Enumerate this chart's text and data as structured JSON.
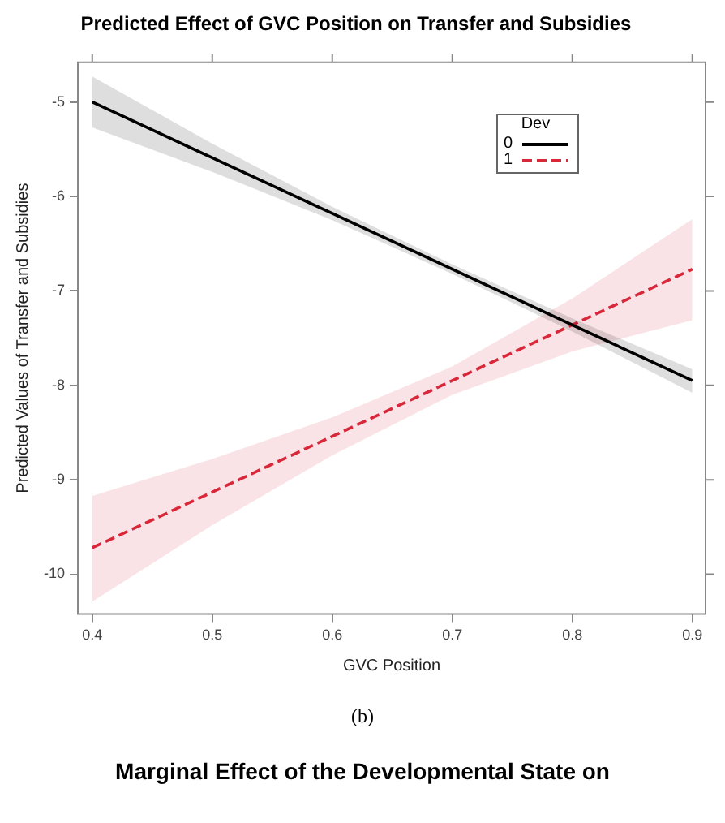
{
  "chart_data": {
    "type": "line",
    "title": "Predicted Effect of GVC Position on Transfer and Subsidies",
    "xlabel": "GVC Position",
    "ylabel": "Predicted Values of Transfer and Subsidies",
    "legend_title": "Dev",
    "legend": "top right",
    "grid": false,
    "x": [
      0.4,
      0.5,
      0.6,
      0.7,
      0.8,
      0.9
    ],
    "xlim": [
      0.388,
      0.911
    ],
    "xticks": [
      0.4,
      0.5,
      0.6,
      0.7,
      0.8,
      0.9
    ],
    "ylim": [
      -10.42,
      -4.58
    ],
    "yticks": [
      -10,
      -9,
      -8,
      -7,
      -6,
      -5
    ],
    "series": [
      {
        "name": "0",
        "color": "#000000",
        "line_style": "solid",
        "values": [
          -5.0,
          -5.59,
          -6.18,
          -6.77,
          -7.36,
          -7.95
        ],
        "lower": [
          -5.27,
          -5.74,
          -6.25,
          -6.82,
          -7.43,
          -8.08
        ],
        "upper": [
          -4.73,
          -5.44,
          -6.11,
          -6.72,
          -7.29,
          -7.83
        ]
      },
      {
        "name": "1",
        "color": "#d9283a",
        "line_style": "dashed",
        "values": [
          -9.72,
          -9.13,
          -8.54,
          -7.95,
          -7.36,
          -6.77
        ],
        "lower": [
          -10.29,
          -9.48,
          -8.74,
          -8.1,
          -7.64,
          -7.31
        ],
        "upper": [
          -9.17,
          -8.78,
          -8.34,
          -7.8,
          -7.08,
          -6.24
        ]
      }
    ],
    "annotations": [
      "(b)",
      "Marginal Effect of the Developmental State on"
    ]
  }
}
